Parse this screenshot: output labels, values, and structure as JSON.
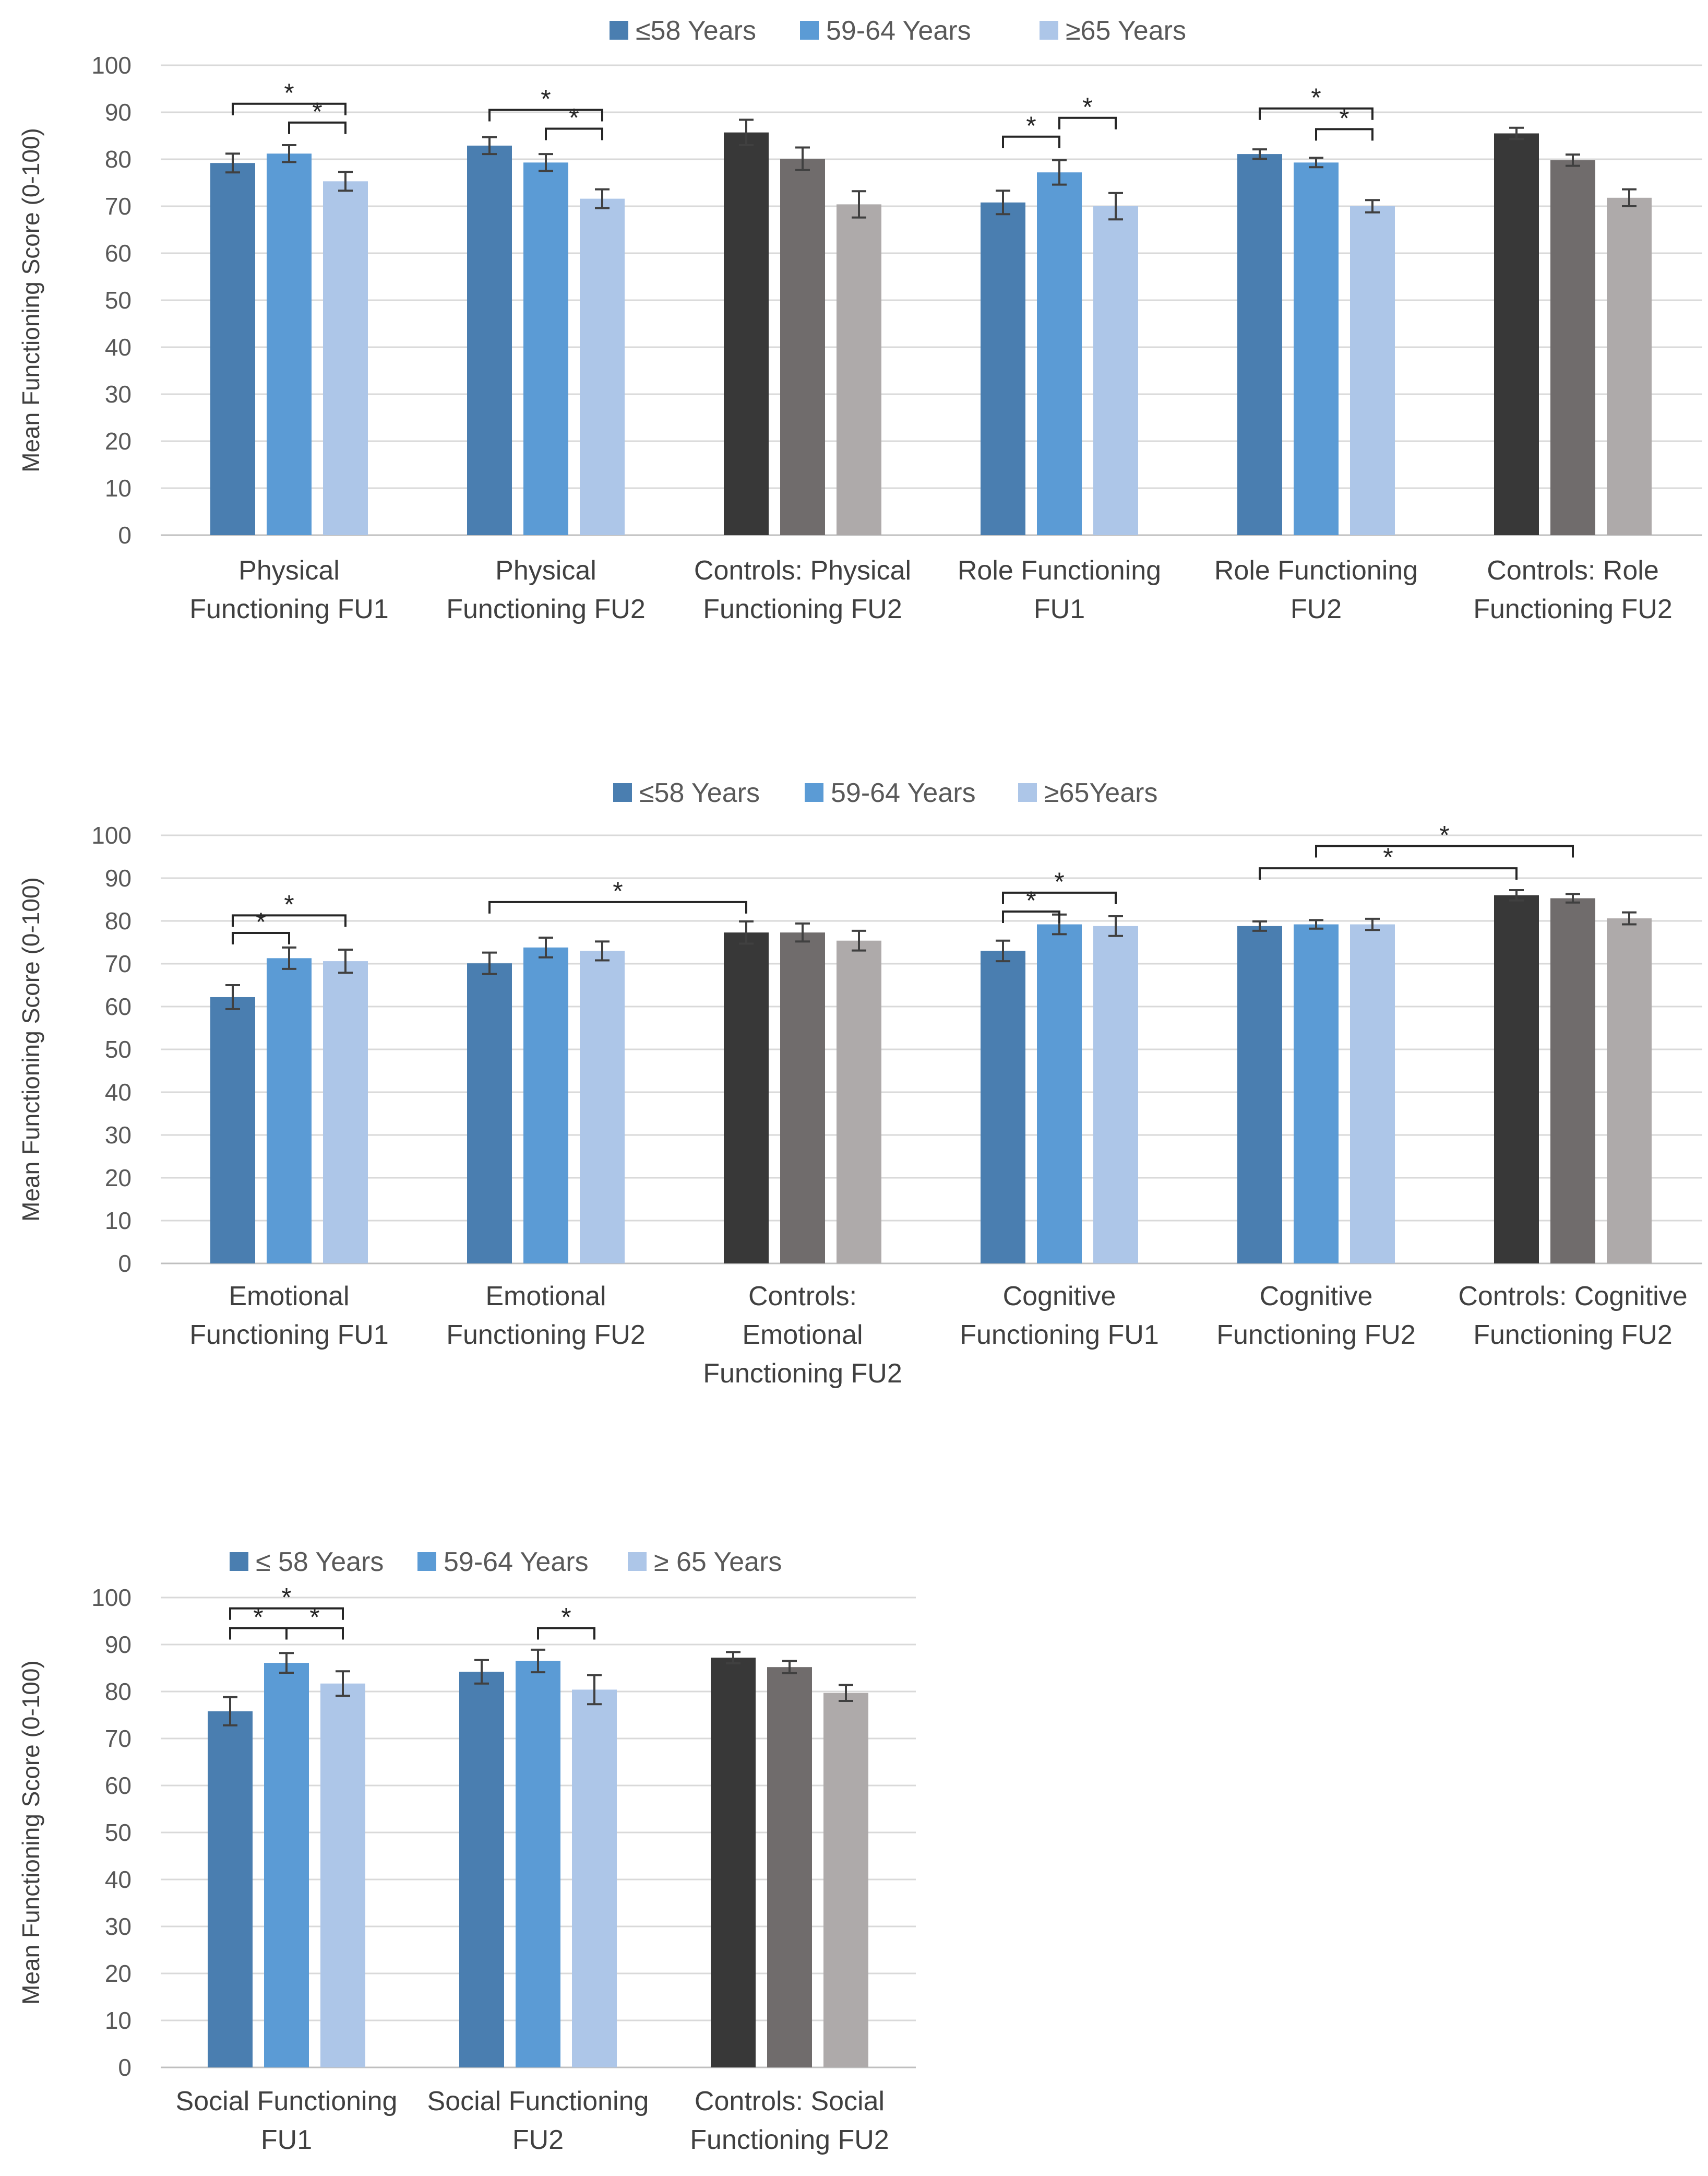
{
  "chart_data": [
    {
      "type": "bar",
      "legend_placement": "top-center",
      "ylabel": "Mean Functioning Score (0-100)",
      "ylim": [
        0,
        100
      ],
      "yticks": [
        0,
        10,
        20,
        30,
        40,
        50,
        60,
        70,
        80,
        90,
        100
      ],
      "grid": true,
      "series_names": [
        "≤58 Years",
        "59-64 Years",
        "≥65 Years"
      ],
      "series_colors": [
        "#4a7eb0",
        "#5b9bd5",
        "#adc6e8"
      ],
      "control_colors": [
        "#383838",
        "#706c6c",
        "#aeaaaa"
      ],
      "groups": [
        {
          "label": [
            "Physical",
            "Functioning FU1"
          ],
          "control": false,
          "values": [
            79.2,
            81.2,
            75.3
          ],
          "errors": [
            2.0,
            1.8,
            2.0
          ]
        },
        {
          "label": [
            "Physical",
            "Functioning FU2"
          ],
          "control": false,
          "values": [
            82.9,
            79.3,
            71.6
          ],
          "errors": [
            1.8,
            1.8,
            2.0
          ]
        },
        {
          "label": [
            "Controls: Physical",
            "Functioning FU2"
          ],
          "control": true,
          "values": [
            85.7,
            80.1,
            70.4
          ],
          "errors": [
            2.7,
            2.4,
            2.8
          ]
        },
        {
          "label": [
            "Role Functioning",
            "FU1"
          ],
          "control": false,
          "values": [
            70.8,
            77.2,
            70.0
          ],
          "errors": [
            2.5,
            2.6,
            2.8
          ]
        },
        {
          "label": [
            "Role Functioning",
            "FU2"
          ],
          "control": false,
          "values": [
            81.1,
            79.3,
            70.0
          ],
          "errors": [
            1.0,
            1.0,
            1.3
          ]
        },
        {
          "label": [
            "Controls: Role",
            "Functioning FU2"
          ],
          "control": true,
          "values": [
            85.5,
            79.8,
            71.8
          ],
          "errors": [
            1.2,
            1.2,
            1.8
          ]
        }
      ],
      "brackets": [
        {
          "group": 0,
          "from": 0,
          "to": 2,
          "y": 91.8,
          "label": "*"
        },
        {
          "group": 0,
          "from": 1,
          "to": 2,
          "y": 87.8,
          "label": "*"
        },
        {
          "group": 1,
          "from": 0,
          "to": 2,
          "y": 90.5,
          "label": "*"
        },
        {
          "group": 1,
          "from": 1,
          "to": 2,
          "y": 86.5,
          "label": "*"
        },
        {
          "group": 3,
          "from": 0,
          "to": 1,
          "y": 84.8,
          "label": "*"
        },
        {
          "group": 3,
          "from": 1,
          "to": 2,
          "y": 88.8,
          "label": "*"
        },
        {
          "group": 4,
          "from": 0,
          "to": 2,
          "y": 90.8,
          "label": "*"
        },
        {
          "group": 4,
          "from": 1,
          "to": 2,
          "y": 86.4,
          "label": "*"
        }
      ]
    },
    {
      "type": "bar",
      "legend_placement": "top-center",
      "ylabel": "Mean Functioning Score (0-100)",
      "ylim": [
        0,
        100
      ],
      "yticks": [
        0,
        10,
        20,
        30,
        40,
        50,
        60,
        70,
        80,
        90,
        100
      ],
      "grid": true,
      "series_names": [
        "≤58 Years",
        "59-64 Years",
        "≥65Years"
      ],
      "series_colors": [
        "#4a7eb0",
        "#5b9bd5",
        "#adc6e8"
      ],
      "control_colors": [
        "#383838",
        "#706c6c",
        "#aeaaaa"
      ],
      "groups": [
        {
          "label": [
            "Emotional",
            "Functioning FU1"
          ],
          "control": false,
          "values": [
            62.2,
            71.3,
            70.6
          ],
          "errors": [
            2.8,
            2.5,
            2.7
          ]
        },
        {
          "label": [
            "Emotional",
            "Functioning FU2"
          ],
          "control": false,
          "values": [
            70.1,
            73.8,
            73.0
          ],
          "errors": [
            2.5,
            2.3,
            2.2
          ]
        },
        {
          "label": [
            "Controls:",
            "Emotional",
            "Functioning FU2"
          ],
          "control": true,
          "values": [
            77.3,
            77.3,
            75.4
          ],
          "errors": [
            2.6,
            2.1,
            2.3
          ]
        },
        {
          "label": [
            "Cognitive",
            "Functioning FU1"
          ],
          "control": false,
          "values": [
            73.0,
            79.2,
            78.8
          ],
          "errors": [
            2.4,
            2.3,
            2.3
          ]
        },
        {
          "label": [
            "Cognitive",
            "Functioning FU2"
          ],
          "control": false,
          "values": [
            78.8,
            79.2,
            79.2
          ],
          "errors": [
            1.1,
            1.0,
            1.3
          ]
        },
        {
          "label": [
            "Controls: Cognitive",
            "Functioning FU2"
          ],
          "control": true,
          "values": [
            86.0,
            85.3,
            80.6
          ],
          "errors": [
            1.2,
            1.0,
            1.4
          ]
        }
      ],
      "brackets": [
        {
          "group": 0,
          "from": 0,
          "to": 1,
          "y": 77.2,
          "label": "*"
        },
        {
          "group": 0,
          "from": 0,
          "to": 2,
          "y": 81.3,
          "label": "*"
        },
        {
          "group": 3,
          "from": 0,
          "to": 1,
          "y": 82.2,
          "label": "*"
        },
        {
          "group": 3,
          "from": 0,
          "to": 2,
          "y": 86.6,
          "label": "*"
        },
        {
          "from_bar": [
            1,
            0
          ],
          "to_bar": [
            2,
            0
          ],
          "y": 84.4,
          "label": "*"
        },
        {
          "from_bar": [
            4,
            0
          ],
          "to_bar": [
            5,
            0
          ],
          "y": 92.3,
          "label": "*"
        },
        {
          "from_bar": [
            4,
            1
          ],
          "to_bar": [
            5,
            1
          ],
          "y": 97.5,
          "label": "*"
        }
      ]
    },
    {
      "type": "bar",
      "legend_placement": "top-left",
      "ylabel": "Mean Functioning Score (0-100)",
      "ylim": [
        0,
        100
      ],
      "yticks": [
        0,
        10,
        20,
        30,
        40,
        50,
        60,
        70,
        80,
        90,
        100
      ],
      "grid": true,
      "series_names": [
        "≤ 58 Years",
        "59-64 Years",
        "≥ 65 Years"
      ],
      "series_colors": [
        "#4a7eb0",
        "#5b9bd5",
        "#adc6e8"
      ],
      "control_colors": [
        "#383838",
        "#706c6c",
        "#aeaaaa"
      ],
      "groups": [
        {
          "label": [
            "Social Functioning",
            "FU1"
          ],
          "control": false,
          "values": [
            75.8,
            86.1,
            81.7
          ],
          "errors": [
            3.0,
            2.1,
            2.6
          ]
        },
        {
          "label": [
            "Social Functioning",
            "FU2"
          ],
          "control": false,
          "values": [
            84.2,
            86.5,
            80.4
          ],
          "errors": [
            2.5,
            2.4,
            3.1
          ]
        },
        {
          "label": [
            "Controls: Social",
            "Functioning FU2"
          ],
          "control": true,
          "values": [
            87.2,
            85.2,
            79.7
          ],
          "errors": [
            1.2,
            1.3,
            1.7
          ]
        }
      ],
      "brackets": [
        {
          "group": 0,
          "from": 0,
          "to": 1,
          "y": 93.5,
          "label": "*"
        },
        {
          "group": 0,
          "from": 1,
          "to": 2,
          "y": 93.5,
          "label": "*"
        },
        {
          "group": 0,
          "from": 0,
          "to": 2,
          "y": 97.7,
          "label": "*"
        },
        {
          "group": 1,
          "from": 1,
          "to": 2,
          "y": 93.5,
          "label": "*"
        }
      ]
    }
  ]
}
